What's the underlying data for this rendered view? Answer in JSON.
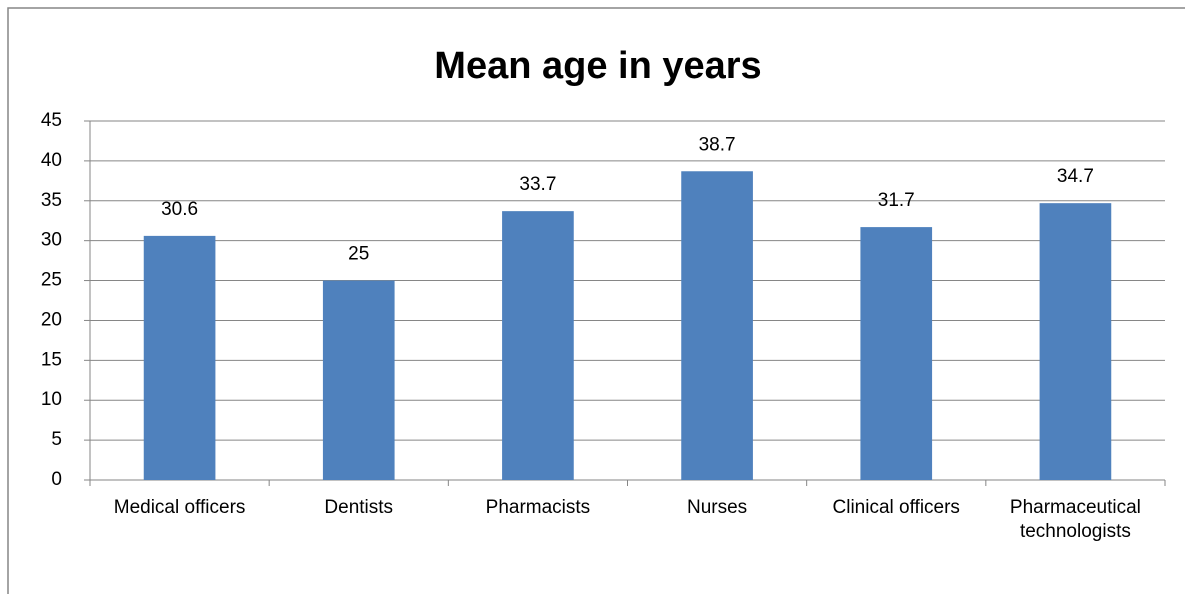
{
  "chart_data": {
    "type": "bar",
    "title": "Mean age in years",
    "categories": [
      "Medical officers",
      "Dentists",
      "Pharmacists",
      "Nurses",
      "Clinical officers",
      "Pharmaceutical technologists"
    ],
    "values": [
      30.6,
      25,
      33.7,
      38.7,
      31.7,
      34.7
    ],
    "color": "#4f81bd",
    "ylim": [
      0,
      45
    ],
    "yticks": [
      0,
      5,
      10,
      15,
      20,
      25,
      30,
      35,
      40,
      45
    ],
    "grid": true
  }
}
